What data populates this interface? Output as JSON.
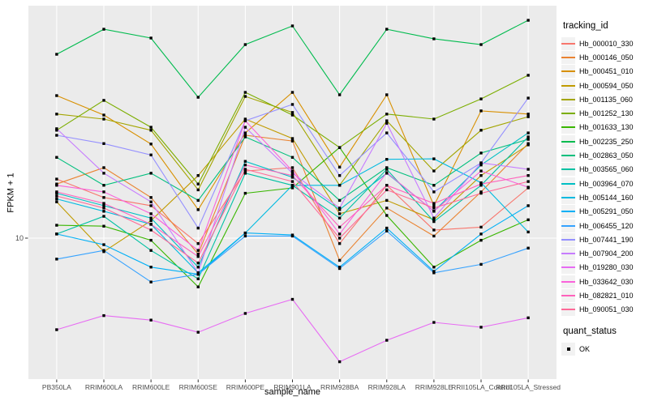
{
  "chart_data": {
    "type": "line",
    "title": "",
    "xlabel": "sample_name",
    "ylabel": "FPKM + 1",
    "y_scale": "log10",
    "y_ticks": [
      10
    ],
    "grid": "on",
    "legend_position": "right",
    "panel_bg": "#EBEBEB",
    "grid_color": "#FFFFFF",
    "tick_label_color": "#4D4D4D",
    "marker": "square",
    "marker_color": "#000000",
    "categories": [
      "PB350LA",
      "RRIM600LA",
      "RRIM600LE",
      "RRIM600SE",
      "RRIM600PE",
      "RRIM901LA",
      "RRIM928BA",
      "RRIM928LA",
      "RRIM928LE",
      "RRII105LA_Control",
      "RRII105LA_Stressed"
    ],
    "legend": {
      "color_title": "tracking_id",
      "shape_title": "quant_status",
      "shape_items": [
        {
          "label": "OK"
        }
      ]
    },
    "series": [
      {
        "name": "Hb_000010_330",
        "color": "#F8766D",
        "values": [
          17.5,
          14.7,
          13.6,
          9.5,
          18.9,
          19.5,
          9.5,
          16.5,
          10.8,
          11.1,
          16.1
        ]
      },
      {
        "name": "Hb_000146_050",
        "color": "#EA8331",
        "values": [
          16.7,
          19.5,
          14.7,
          8.6,
          26.5,
          25.1,
          8.1,
          13.3,
          10.2,
          15.5,
          24.5
        ]
      },
      {
        "name": "Hb_000451_010",
        "color": "#D89000",
        "values": [
          38.6,
          32.1,
          24.4,
          13.1,
          27.1,
          39.8,
          19.6,
          38.9,
          13.6,
          33.4,
          32.4
        ]
      },
      {
        "name": "Hb_000594_050",
        "color": "#C09B00",
        "values": [
          14.1,
          8.8,
          11.8,
          18.1,
          30.9,
          25.7,
          12.6,
          14.3,
          11.9,
          18.1,
          24.2
        ]
      },
      {
        "name": "Hb_001135_060",
        "color": "#A3A500",
        "values": [
          32.4,
          30.9,
          27.8,
          15.8,
          38.3,
          32.9,
          16.5,
          30.4,
          18.9,
          27.8,
          31.6
        ]
      },
      {
        "name": "Hb_001252_130",
        "color": "#7CAE00",
        "values": [
          27.8,
          36.9,
          28.6,
          16.7,
          39.8,
          32.1,
          23.6,
          32.4,
          30.9,
          37.4,
          46.8
        ]
      },
      {
        "name": "Hb_001633_130",
        "color": "#39B600",
        "values": [
          11.3,
          11.2,
          9.8,
          6.3,
          15.3,
          16.1,
          23.6,
          12.4,
          7.6,
          9.8,
          11.9
        ]
      },
      {
        "name": "Hb_002235_250",
        "color": "#00BB4E",
        "values": [
          57.1,
          72.4,
          66.6,
          38.0,
          62.6,
          74.7,
          38.9,
          72.4,
          66.1,
          62.6,
          78.8
        ]
      },
      {
        "name": "Hb_002863_050",
        "color": "#00BF7D",
        "values": [
          21.5,
          16.5,
          18.5,
          14.3,
          26.1,
          21.5,
          14.3,
          19.5,
          16.5,
          22.4,
          25.5
        ]
      },
      {
        "name": "Hb_003565_060",
        "color": "#00C1A3",
        "values": [
          10.4,
          12.3,
          8.9,
          6.8,
          18.5,
          16.5,
          12.1,
          19.2,
          11.7,
          16.5,
          26.1
        ]
      },
      {
        "name": "Hb_003964_070",
        "color": "#00BFC4",
        "values": [
          15.3,
          13.6,
          12.1,
          7.6,
          20.7,
          17.8,
          13.1,
          18.5,
          12.9,
          20.0,
          27.1
        ]
      },
      {
        "name": "Hb_005144_160",
        "color": "#00BAE0",
        "values": [
          14.5,
          12.9,
          11.4,
          7.2,
          10.5,
          16.5,
          16.5,
          21.1,
          21.2,
          16.9,
          10.6
        ]
      },
      {
        "name": "Hb_005291_050",
        "color": "#00B0F6",
        "values": [
          10.4,
          9.4,
          7.6,
          7.1,
          10.5,
          10.3,
          7.6,
          11.0,
          7.3,
          10.4,
          13.6
        ]
      },
      {
        "name": "Hb_006455_120",
        "color": "#35A2FF",
        "values": [
          8.2,
          8.9,
          6.6,
          7.1,
          10.2,
          10.2,
          7.5,
          10.7,
          7.2,
          7.8,
          9.1
        ]
      },
      {
        "name": "Hb_007441_190",
        "color": "#9590FF",
        "values": [
          26.5,
          24.5,
          22.0,
          11.0,
          30.4,
          35.5,
          18.1,
          27.1,
          15.5,
          20.4,
          37.7
        ]
      },
      {
        "name": "Hb_007904_200",
        "color": "#C77CFF",
        "values": [
          28.2,
          18.5,
          14.1,
          7.2,
          28.6,
          18.5,
          13.3,
          29.7,
          12.1,
          20.4,
          19.2
        ]
      },
      {
        "name": "Hb_019280_030",
        "color": "#E76BF3",
        "values": [
          4.2,
          4.8,
          4.6,
          4.1,
          4.9,
          5.6,
          3.1,
          3.8,
          4.5,
          4.3,
          4.7
        ]
      },
      {
        "name": "Hb_033642_030",
        "color": "#FA62DB",
        "values": [
          16.5,
          15.5,
          12.6,
          8.9,
          30.4,
          18.9,
          10.4,
          18.6,
          12.9,
          18.9,
          16.2
        ]
      },
      {
        "name": "Hb_082821_010",
        "color": "#FF62BC",
        "values": [
          15.5,
          13.9,
          11.4,
          8.4,
          20.0,
          18.1,
          11.1,
          16.5,
          13.9,
          16.7,
          18.1
        ]
      },
      {
        "name": "Hb_090051_030",
        "color": "#FF6A98",
        "values": [
          14.9,
          13.3,
          10.8,
          7.9,
          19.2,
          17.1,
          10.0,
          15.8,
          13.3,
          15.3,
          17.1
        ]
      }
    ]
  }
}
